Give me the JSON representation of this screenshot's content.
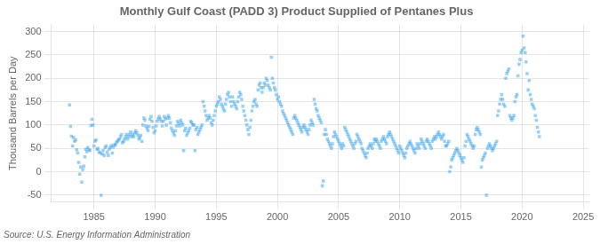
{
  "chart_data": {
    "type": "scatter",
    "title": "Monthly Gulf Coast (PADD 3) Product Supplied of Pentanes Plus",
    "ylabel": "Thousand Barrels per Day",
    "annotations": [
      "Source: U.S. Energy Information Administration"
    ],
    "marker": "square",
    "grid": true,
    "xlim": [
      1981.5,
      2025.5
    ],
    "ylim": [
      -65,
      315
    ],
    "xticks": [
      1985,
      1990,
      1995,
      2000,
      2005,
      2010,
      2015,
      2020,
      2025
    ],
    "yticks": [
      -50,
      0,
      50,
      100,
      150,
      200,
      250,
      300
    ],
    "x": [
      1983.0,
      1983.083,
      1983.167,
      1983.25,
      1983.333,
      1983.417,
      1983.5,
      1983.583,
      1983.667,
      1983.75,
      1983.833,
      1983.917,
      1984.0,
      1984.083,
      1984.167,
      1984.25,
      1984.333,
      1984.417,
      1984.5,
      1984.583,
      1984.667,
      1984.75,
      1984.833,
      1984.917,
      1985.0,
      1985.083,
      1985.167,
      1985.25,
      1985.333,
      1985.417,
      1985.5,
      1985.583,
      1985.667,
      1985.75,
      1985.833,
      1985.917,
      1986.0,
      1986.083,
      1986.167,
      1986.25,
      1986.333,
      1986.417,
      1986.5,
      1986.583,
      1986.667,
      1986.75,
      1986.833,
      1986.917,
      1987.0,
      1987.083,
      1987.167,
      1987.25,
      1987.333,
      1987.417,
      1987.5,
      1987.583,
      1987.667,
      1987.75,
      1987.833,
      1987.917,
      1988.0,
      1988.083,
      1988.167,
      1988.25,
      1988.333,
      1988.417,
      1988.5,
      1988.583,
      1988.667,
      1988.75,
      1988.833,
      1988.917,
      1989.0,
      1989.083,
      1989.167,
      1989.25,
      1989.333,
      1989.417,
      1989.5,
      1989.583,
      1989.667,
      1989.75,
      1989.833,
      1989.917,
      1990.0,
      1990.083,
      1990.167,
      1990.25,
      1990.333,
      1990.417,
      1990.5,
      1990.583,
      1990.667,
      1990.75,
      1990.833,
      1990.917,
      1991.0,
      1991.083,
      1991.167,
      1991.25,
      1991.333,
      1991.417,
      1991.5,
      1991.583,
      1991.667,
      1991.75,
      1991.833,
      1991.917,
      1992.0,
      1992.083,
      1992.167,
      1992.25,
      1992.333,
      1992.417,
      1992.5,
      1992.583,
      1992.667,
      1992.75,
      1992.833,
      1992.917,
      1993.0,
      1993.083,
      1993.167,
      1993.25,
      1993.333,
      1993.417,
      1993.5,
      1993.583,
      1993.667,
      1993.75,
      1993.833,
      1993.917,
      1994.0,
      1994.083,
      1994.167,
      1994.25,
      1994.333,
      1994.417,
      1994.5,
      1994.583,
      1994.667,
      1994.75,
      1994.833,
      1994.917,
      1995.0,
      1995.083,
      1995.167,
      1995.25,
      1995.333,
      1995.417,
      1995.5,
      1995.583,
      1995.667,
      1995.75,
      1995.833,
      1995.917,
      1996.0,
      1996.083,
      1996.167,
      1996.25,
      1996.333,
      1996.417,
      1996.5,
      1996.583,
      1996.667,
      1996.75,
      1996.833,
      1996.917,
      1997.0,
      1997.083,
      1997.167,
      1997.25,
      1997.333,
      1997.417,
      1997.5,
      1997.583,
      1997.667,
      1997.75,
      1997.833,
      1997.917,
      1998.0,
      1998.083,
      1998.167,
      1998.25,
      1998.333,
      1998.417,
      1998.5,
      1998.583,
      1998.667,
      1998.75,
      1998.833,
      1998.917,
      1999.0,
      1999.083,
      1999.167,
      1999.25,
      1999.333,
      1999.417,
      1999.5,
      1999.583,
      1999.667,
      1999.75,
      1999.833,
      1999.917,
      2000.0,
      2000.083,
      2000.167,
      2000.25,
      2000.333,
      2000.417,
      2000.5,
      2000.583,
      2000.667,
      2000.75,
      2000.833,
      2000.917,
      2001.0,
      2001.083,
      2001.167,
      2001.25,
      2001.333,
      2001.417,
      2001.5,
      2001.583,
      2001.667,
      2001.75,
      2001.833,
      2001.917,
      2002.0,
      2002.083,
      2002.167,
      2002.25,
      2002.333,
      2002.417,
      2002.5,
      2002.583,
      2002.667,
      2002.75,
      2002.833,
      2002.917,
      2003.0,
      2003.083,
      2003.167,
      2003.25,
      2003.333,
      2003.417,
      2003.5,
      2003.583,
      2003.667,
      2003.75,
      2003.833,
      2003.917,
      2004.0,
      2004.083,
      2004.167,
      2004.25,
      2004.333,
      2004.417,
      2004.5,
      2004.583,
      2004.667,
      2004.75,
      2004.833,
      2004.917,
      2005.0,
      2005.083,
      2005.167,
      2005.25,
      2005.333,
      2005.417,
      2005.5,
      2005.583,
      2005.667,
      2005.75,
      2005.833,
      2005.917,
      2006.0,
      2006.083,
      2006.167,
      2006.25,
      2006.333,
      2006.417,
      2006.5,
      2006.583,
      2006.667,
      2006.75,
      2006.833,
      2006.917,
      2007.0,
      2007.083,
      2007.167,
      2007.25,
      2007.333,
      2007.417,
      2007.5,
      2007.583,
      2007.667,
      2007.75,
      2007.833,
      2007.917,
      2008.0,
      2008.083,
      2008.167,
      2008.25,
      2008.333,
      2008.417,
      2008.5,
      2008.583,
      2008.667,
      2008.75,
      2008.833,
      2008.917,
      2009.0,
      2009.083,
      2009.167,
      2009.25,
      2009.333,
      2009.417,
      2009.5,
      2009.583,
      2009.667,
      2009.75,
      2009.833,
      2009.917,
      2010.0,
      2010.083,
      2010.167,
      2010.25,
      2010.333,
      2010.417,
      2010.5,
      2010.583,
      2010.667,
      2010.75,
      2010.833,
      2010.917,
      2011.0,
      2011.083,
      2011.167,
      2011.25,
      2011.333,
      2011.417,
      2011.5,
      2011.583,
      2011.667,
      2011.75,
      2011.833,
      2011.917,
      2012.0,
      2012.083,
      2012.167,
      2012.25,
      2012.333,
      2012.417,
      2012.5,
      2012.583,
      2012.667,
      2012.75,
      2012.833,
      2012.917,
      2013.0,
      2013.083,
      2013.167,
      2013.25,
      2013.333,
      2013.417,
      2013.5,
      2013.583,
      2013.667,
      2013.75,
      2013.833,
      2013.917,
      2014.0,
      2014.083,
      2014.167,
      2014.25,
      2014.333,
      2014.417,
      2014.5,
      2014.583,
      2014.667,
      2014.75,
      2014.833,
      2014.917,
      2015.0,
      2015.083,
      2015.167,
      2015.25,
      2015.333,
      2015.417,
      2015.5,
      2015.583,
      2015.667,
      2015.75,
      2015.833,
      2015.917,
      2016.0,
      2016.083,
      2016.167,
      2016.25,
      2016.333,
      2016.417,
      2016.5,
      2016.583,
      2016.667,
      2016.75,
      2016.833,
      2016.917,
      2017.0,
      2017.083,
      2017.167,
      2017.25,
      2017.333,
      2017.417,
      2017.5,
      2017.583,
      2017.667,
      2017.75,
      2017.833,
      2017.917,
      2018.0,
      2018.083,
      2018.167,
      2018.25,
      2018.333,
      2018.417,
      2018.5,
      2018.583,
      2018.667,
      2018.75,
      2018.833,
      2018.917,
      2019.0,
      2019.083,
      2019.167,
      2019.25,
      2019.333,
      2019.417,
      2019.5,
      2019.583,
      2019.667,
      2019.75,
      2019.833,
      2019.917,
      2020.0,
      2020.083,
      2020.167,
      2020.25,
      2020.333,
      2020.417,
      2020.5,
      2020.583,
      2020.667,
      2020.75,
      2020.833,
      2020.917,
      2021.0,
      2021.083,
      2021.167,
      2021.25,
      2021.333,
      2021.417
    ],
    "values": [
      143,
      97,
      76,
      55,
      73,
      65,
      68,
      47,
      40,
      20,
      -5,
      10,
      -22,
      5,
      12,
      32,
      48,
      43,
      52,
      47,
      45,
      99,
      112,
      100,
      55,
      65,
      68,
      48,
      50,
      43,
      40,
      -50,
      38,
      45,
      35,
      52,
      55,
      42,
      35,
      48,
      52,
      56,
      40,
      53,
      58,
      57,
      62,
      65,
      68,
      70,
      75,
      80,
      62,
      65,
      70,
      75,
      80,
      70,
      75,
      80,
      85,
      75,
      80,
      75,
      83,
      88,
      83,
      78,
      70,
      73,
      78,
      65,
      100,
      115,
      110,
      98,
      93,
      88,
      97,
      112,
      118,
      108,
      95,
      83,
      88,
      98,
      108,
      113,
      118,
      113,
      108,
      98,
      108,
      118,
      113,
      100,
      115,
      120,
      115,
      105,
      93,
      88,
      83,
      78,
      88,
      98,
      108,
      103,
      98,
      110,
      105,
      100,
      45,
      88,
      93,
      78,
      83,
      88,
      93,
      108,
      105,
      100,
      100,
      45,
      90,
      95,
      80,
      85,
      90,
      95,
      100,
      150,
      140,
      130,
      120,
      110,
      115,
      120,
      115,
      105,
      100,
      110,
      120,
      130,
      140,
      145,
      150,
      160,
      155,
      145,
      140,
      135,
      130,
      145,
      155,
      165,
      170,
      160,
      150,
      140,
      160,
      150,
      145,
      140,
      135,
      150,
      160,
      170,
      165,
      155,
      140,
      130,
      120,
      110,
      100,
      90,
      80,
      95,
      110,
      130,
      140,
      150,
      155,
      145,
      140,
      175,
      185,
      190,
      180,
      170,
      180,
      190,
      185,
      200,
      195,
      185,
      180,
      175,
      245,
      200,
      190,
      180,
      175,
      165,
      155,
      160,
      150,
      145,
      140,
      130,
      125,
      120,
      115,
      110,
      105,
      100,
      95,
      90,
      85,
      80,
      115,
      120,
      115,
      110,
      105,
      100,
      95,
      90,
      85,
      95,
      100,
      95,
      90,
      85,
      80,
      90,
      100,
      110,
      105,
      100,
      155,
      145,
      135,
      130,
      120,
      115,
      110,
      105,
      -30,
      -20,
      80,
      90,
      80,
      70,
      65,
      60,
      55,
      50,
      60,
      75,
      85,
      80,
      75,
      70,
      65,
      60,
      55,
      50,
      60,
      55,
      95,
      90,
      85,
      80,
      75,
      70,
      65,
      60,
      55,
      50,
      60,
      65,
      80,
      75,
      70,
      65,
      60,
      50,
      45,
      40,
      35,
      30,
      40,
      50,
      55,
      60,
      55,
      50,
      60,
      70,
      65,
      70,
      65,
      60,
      55,
      50,
      65,
      70,
      75,
      70,
      65,
      60,
      75,
      80,
      85,
      80,
      75,
      70,
      65,
      60,
      55,
      50,
      45,
      40,
      55,
      50,
      45,
      40,
      35,
      30,
      40,
      50,
      55,
      60,
      65,
      60,
      55,
      50,
      45,
      40,
      50,
      60,
      55,
      50,
      60,
      70,
      65,
      60,
      55,
      50,
      65,
      70,
      65,
      60,
      55,
      50,
      65,
      70,
      75,
      70,
      75,
      80,
      85,
      80,
      75,
      70,
      75,
      80,
      65,
      55,
      55,
      60,
      65,
      0,
      10,
      25,
      30,
      35,
      40,
      45,
      50,
      45,
      40,
      35,
      30,
      25,
      20,
      30,
      55,
      65,
      80,
      75,
      70,
      65,
      60,
      55,
      50,
      55,
      80,
      90,
      95,
      90,
      85,
      80,
      10,
      25,
      30,
      35,
      40,
      -50,
      50,
      55,
      60,
      55,
      50,
      45,
      50,
      55,
      60,
      65,
      120,
      130,
      145,
      155,
      165,
      155,
      145,
      140,
      200,
      210,
      215,
      220,
      120,
      115,
      110,
      115,
      120,
      150,
      160,
      165,
      205,
      230,
      240,
      255,
      260,
      290,
      265,
      255,
      235,
      210,
      175,
      195,
      165,
      155,
      145,
      140,
      135,
      120,
      110,
      95,
      85,
      75
    ]
  }
}
